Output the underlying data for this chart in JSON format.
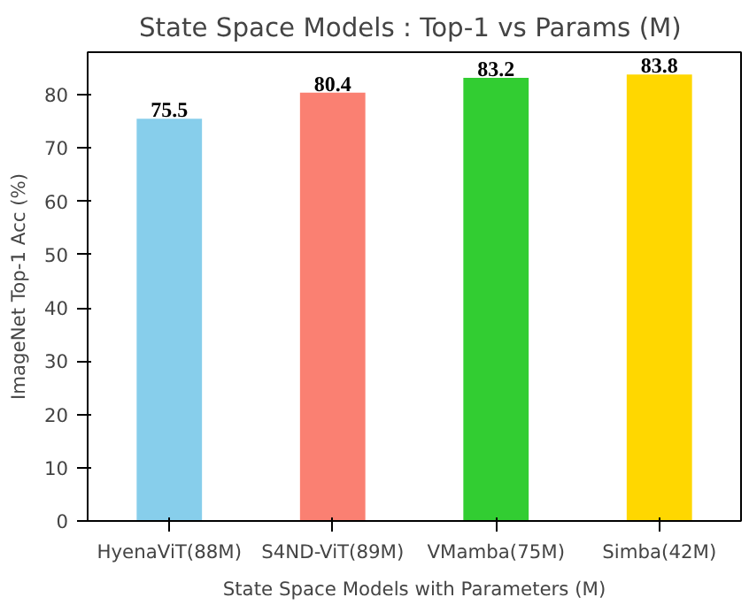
{
  "chart_data": {
    "type": "bar",
    "title": "State Space  Models : Top-1 vs Params (M)",
    "xlabel": "State Space Models with Parameters (M)",
    "ylabel": "ImageNet Top-1 Acc (%)",
    "categories": [
      "HyenaViT(88M)",
      "S4ND-ViT(89M)",
      "VMamba(75M)",
      "Simba(42M)"
    ],
    "values": [
      75.5,
      80.4,
      83.2,
      83.8
    ],
    "colors": [
      "#87ceeb",
      "#fa8072",
      "#32cd32",
      "#ffd700"
    ],
    "ylim": [
      0,
      88
    ],
    "yticks": [
      0,
      10,
      20,
      30,
      40,
      50,
      60,
      70,
      80
    ],
    "data_labels": true,
    "grid": false
  }
}
